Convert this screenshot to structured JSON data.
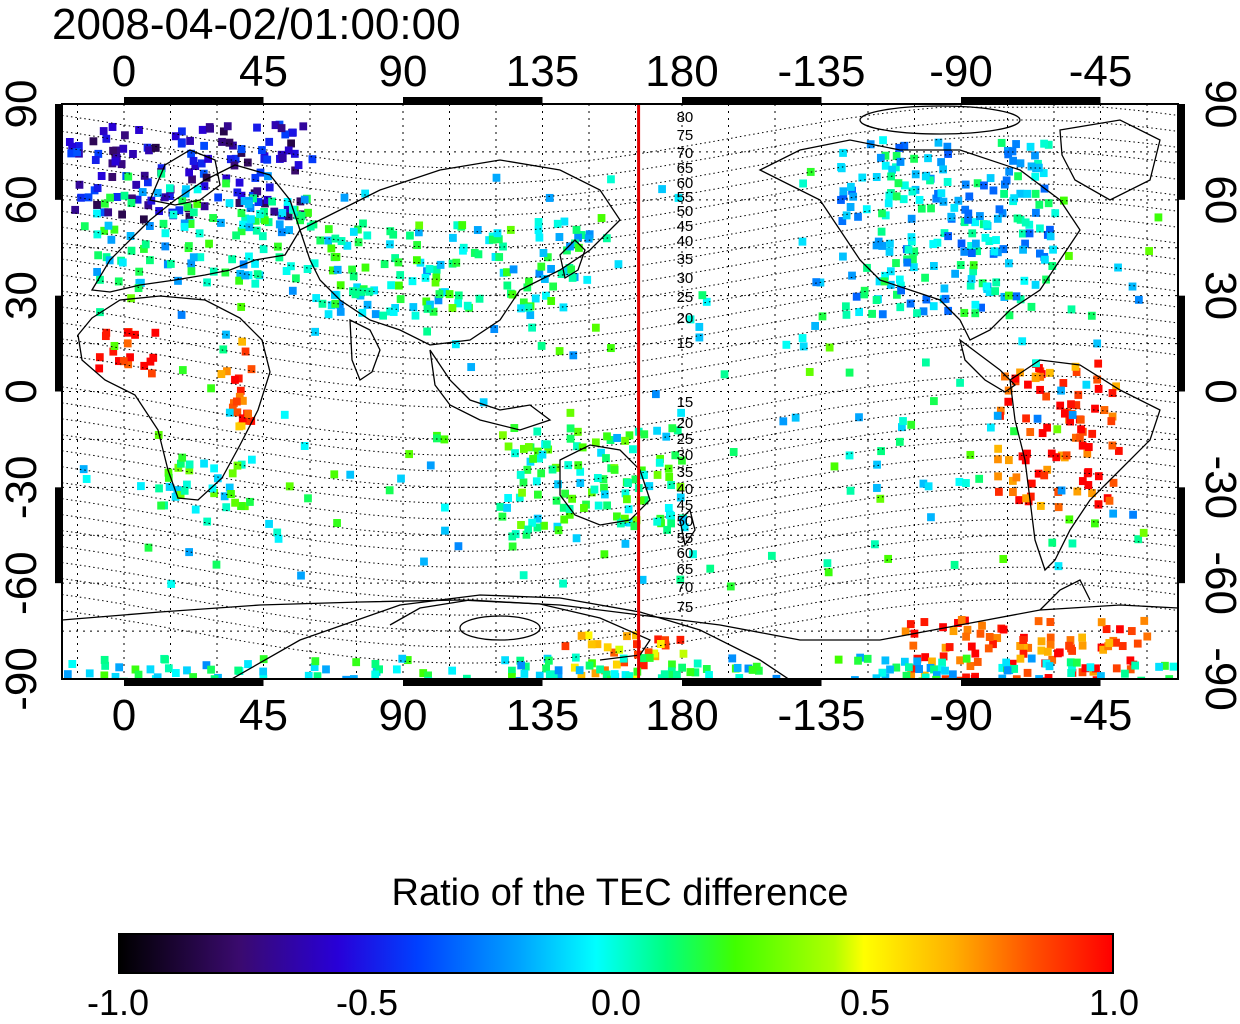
{
  "title": "2008-04-02/01:00:00",
  "map": {
    "lon_tick_labels": [
      "0",
      "45",
      "90",
      "135",
      "180",
      "-135",
      "-90",
      "-45"
    ],
    "lon_tick_values": [
      0,
      45,
      90,
      135,
      180,
      225,
      270,
      315
    ],
    "lon_range": [
      -20,
      340
    ],
    "lat_tick_labels": [
      "90",
      "60",
      "30",
      "0",
      "-30",
      "-60",
      "-90"
    ],
    "lat_tick_values": [
      90,
      60,
      30,
      0,
      -30,
      -60,
      -90
    ],
    "lat_range": [
      -90,
      90
    ],
    "terminator_line_lon": 166,
    "terminator_line_color": "#e00000",
    "contour_labels_north": [
      "80",
      "75",
      "70",
      "65",
      "60",
      "55",
      "50",
      "45",
      "40",
      "35",
      "30",
      "25",
      "20",
      "15"
    ],
    "contour_labels_south": [
      "15",
      "20",
      "25",
      "30",
      "35",
      "40",
      "45",
      "50",
      "55",
      "60",
      "65",
      "70",
      "75"
    ],
    "grid": true
  },
  "colorbar": {
    "title": "Ratio of the TEC difference",
    "min": -1.0,
    "max": 1.0,
    "tick_labels": [
      "-1.0",
      "-0.5",
      "0.0",
      "0.5",
      "1.0"
    ],
    "tick_values": [
      -1.0,
      -0.5,
      0.0,
      0.5,
      1.0
    ]
  },
  "data_regions": [
    {
      "name": "northern-europe-scandinavia",
      "lon": [
        -20,
        60
      ],
      "lat": [
        55,
        85
      ],
      "value": -0.6
    },
    {
      "name": "europe",
      "lon": [
        -10,
        60
      ],
      "lat": [
        35,
        65
      ],
      "value": 0.0
    },
    {
      "name": "west-africa",
      "lon": [
        -10,
        10
      ],
      "lat": [
        5,
        20
      ],
      "value": 1.0
    },
    {
      "name": "east-africa",
      "lon": [
        30,
        40
      ],
      "lat": [
        -10,
        20
      ],
      "value": 0.8
    },
    {
      "name": "southern-africa",
      "lon": [
        10,
        40
      ],
      "lat": [
        -35,
        -20
      ],
      "value": 0.1
    },
    {
      "name": "asia",
      "lon": [
        60,
        150
      ],
      "lat": [
        25,
        55
      ],
      "value": 0.0
    },
    {
      "name": "australia",
      "lon": [
        120,
        180
      ],
      "lat": [
        -45,
        -10
      ],
      "value": 0.1
    },
    {
      "name": "north-america",
      "lon": [
        230,
        300
      ],
      "lat": [
        25,
        80
      ],
      "value": -0.1
    },
    {
      "name": "south-america",
      "lon": [
        280,
        320
      ],
      "lat": [
        -35,
        10
      ],
      "value": 0.9
    },
    {
      "name": "antarctica-west",
      "lon": [
        250,
        330
      ],
      "lat": [
        -90,
        -70
      ],
      "value": 0.9
    },
    {
      "name": "antarctica-east",
      "lon": [
        140,
        180
      ],
      "lat": [
        -90,
        -75
      ],
      "value": 0.7
    },
    {
      "name": "southern-ocean-band",
      "lon": [
        -20,
        340
      ],
      "lat": [
        -90,
        -82
      ],
      "value": 0.0
    }
  ]
}
